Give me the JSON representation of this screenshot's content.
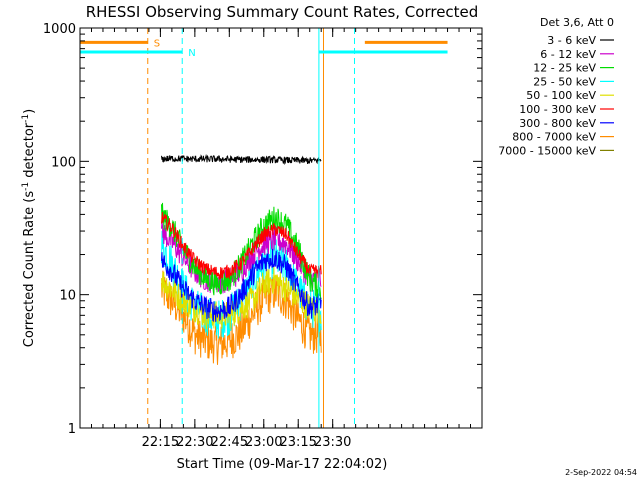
{
  "chart_data": {
    "type": "line",
    "title": "RHESSI Observing Summary Count Rates, Corrected",
    "xlabel": "Start Time (09-Mar-17 22:04:02)",
    "ylabel_main": "Corrected Count Rate (s",
    "ylabel_sup1": "-1",
    "ylabel_mid": " detector",
    "ylabel_sup2": "-1",
    "ylabel_end": ")",
    "y_scale": "log",
    "ylim": [
      1,
      1000
    ],
    "xlim_minutes": [
      -20,
      155
    ],
    "x_ticks": [
      {
        "label": "22:15",
        "minutes": 15
      },
      {
        "label": "22:30",
        "minutes": 30
      },
      {
        "label": "22:45",
        "minutes": 45
      },
      {
        "label": "23:00",
        "minutes": 60
      },
      {
        "label": "23:15",
        "minutes": 75
      },
      {
        "label": "23:30",
        "minutes": 90
      }
    ],
    "y_ticks": [
      {
        "label": "1",
        "value": 1
      },
      {
        "label": "10",
        "value": 10
      },
      {
        "label": "100",
        "value": 100
      },
      {
        "label": "1000",
        "value": 1000
      }
    ],
    "legend": {
      "header": "Det 3,6, Att 0",
      "placement": "right"
    },
    "series": [
      {
        "name": "3 - 6 keV",
        "color": "#000000",
        "x": [
          15.5,
          20,
          30,
          40,
          50,
          60,
          70,
          80,
          85
        ],
        "y": [
          104,
          105,
          104,
          104,
          103,
          103,
          102,
          101,
          102
        ]
      },
      {
        "name": "6 - 12 keV",
        "color": "#cc00cc",
        "x": [
          15.5,
          20,
          25,
          30,
          35,
          40,
          45,
          50,
          55,
          60,
          65,
          70,
          75,
          80,
          85
        ],
        "y": [
          30,
          25,
          19,
          15,
          13,
          12.5,
          13,
          15,
          20,
          24,
          26,
          24,
          18,
          13,
          13
        ]
      },
      {
        "name": "12 - 25 keV",
        "color": "#00dd00",
        "x": [
          15.5,
          20,
          25,
          30,
          35,
          40,
          45,
          50,
          55,
          60,
          65,
          70,
          75,
          80,
          85
        ],
        "y": [
          40,
          32,
          22,
          16,
          13,
          12,
          13,
          17,
          24,
          33,
          38,
          33,
          22,
          13,
          11
        ]
      },
      {
        "name": "25 - 50 keV",
        "color": "#00ffff",
        "x": [
          15.5,
          20,
          25,
          30,
          35,
          40,
          45,
          50,
          55,
          60,
          65,
          70,
          75,
          80,
          85
        ],
        "y": [
          24,
          17,
          11,
          8,
          7,
          6.5,
          7,
          9,
          13,
          17,
          19,
          16,
          11,
          8,
          7.5
        ]
      },
      {
        "name": "50 - 100 keV",
        "color": "#e0e000",
        "x": [
          15.5,
          25,
          35,
          45,
          55,
          60,
          65,
          70,
          80,
          85
        ],
        "y": [
          13,
          9,
          7,
          7,
          9,
          12,
          13,
          11,
          8,
          7.5
        ]
      },
      {
        "name": "100 - 300 keV",
        "color": "#ff0000",
        "x": [
          15.5,
          20,
          25,
          30,
          35,
          40,
          45,
          50,
          55,
          60,
          65,
          70,
          75,
          80,
          85
        ],
        "y": [
          38,
          32,
          23,
          18,
          15.5,
          14.5,
          15,
          17,
          22,
          28,
          31,
          28,
          20,
          15,
          15
        ]
      },
      {
        "name": "300 - 800 keV",
        "color": "#0000ff",
        "x": [
          15.5,
          20,
          25,
          30,
          35,
          40,
          45,
          50,
          55,
          60,
          65,
          70,
          75,
          80,
          85
        ],
        "y": [
          18,
          15,
          11,
          9,
          8,
          7.5,
          8,
          10,
          14,
          18,
          19,
          16,
          11,
          8,
          8.5
        ]
      },
      {
        "name": "800 - 7000 keV",
        "color": "#ff8c00",
        "x": [
          15.5,
          20,
          25,
          30,
          35,
          40,
          45,
          50,
          55,
          60,
          65,
          70,
          75,
          80,
          85
        ],
        "y": [
          11,
          9,
          7,
          5,
          4.5,
          4.2,
          4.5,
          5.2,
          7,
          9.5,
          10.5,
          9,
          6.5,
          5,
          5
        ]
      },
      {
        "name": "7000 - 15000 keV",
        "color": "#808000",
        "x": [],
        "y": []
      }
    ],
    "flags": [
      {
        "label": "S",
        "color": "#ff8c00",
        "segments": [
          [
            -20,
            9.5
          ],
          [
            104,
            140
          ]
        ],
        "level": 780
      },
      {
        "label": "N",
        "color": "#00ffff",
        "segments": [
          [
            -20,
            24.5
          ],
          [
            84,
            140
          ]
        ],
        "level": 660
      }
    ],
    "vertical_markers": [
      {
        "minutes": -20,
        "color": "#00ffff",
        "style": "solid"
      },
      {
        "minutes": 9.5,
        "color": "#ff8c00",
        "style": "dashed"
      },
      {
        "minutes": 24.5,
        "color": "#00ffff",
        "style": "dashed"
      },
      {
        "minutes": 84,
        "color": "#00ffff",
        "style": "solid"
      },
      {
        "minutes": 86,
        "color": "#ff8c00",
        "style": "solid"
      },
      {
        "minutes": 99.5,
        "color": "#00ffff",
        "style": "dashed"
      }
    ]
  },
  "footer": {
    "timestamp": "2-Sep-2022 04:54"
  }
}
